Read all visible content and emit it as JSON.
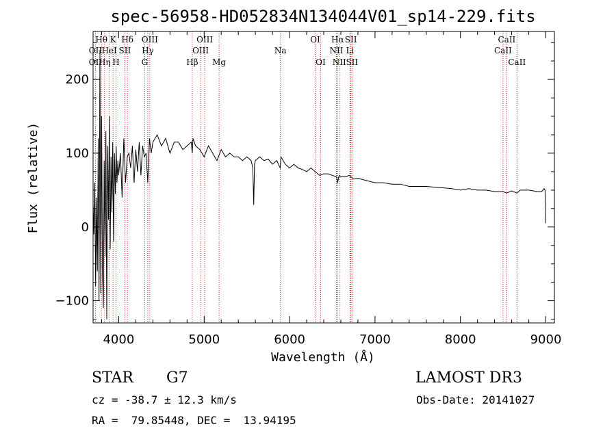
{
  "chart_data": {
    "type": "line",
    "title": "spec-56958-HD052834N134044V01_sp14-229.fits",
    "xlabel": "Wavelength (Å)",
    "ylabel": "Flux (relative)",
    "xlim": [
      3700,
      9100
    ],
    "ylim": [
      -130,
      265
    ],
    "xticks": [
      4000,
      5000,
      6000,
      7000,
      8000,
      9000
    ],
    "yticks": [
      -100,
      0,
      100,
      200
    ],
    "series": [
      {
        "name": "flux",
        "x": [
          3700,
          3710,
          3720,
          3730,
          3740,
          3750,
          3760,
          3770,
          3780,
          3790,
          3800,
          3810,
          3820,
          3830,
          3840,
          3850,
          3860,
          3870,
          3880,
          3890,
          3900,
          3910,
          3920,
          3930,
          3940,
          3950,
          3960,
          3970,
          3980,
          3990,
          4000,
          4020,
          4040,
          4060,
          4080,
          4100,
          4120,
          4140,
          4160,
          4180,
          4200,
          4220,
          4240,
          4260,
          4280,
          4300,
          4320,
          4340,
          4360,
          4380,
          4400,
          4450,
          4500,
          4550,
          4600,
          4650,
          4700,
          4750,
          4800,
          4850,
          4860,
          4870,
          4900,
          4950,
          5000,
          5050,
          5100,
          5150,
          5200,
          5250,
          5300,
          5350,
          5400,
          5450,
          5500,
          5550,
          5570,
          5580,
          5590,
          5600,
          5650,
          5700,
          5750,
          5800,
          5850,
          5890,
          5900,
          5950,
          6000,
          6050,
          6100,
          6150,
          6200,
          6250,
          6300,
          6350,
          6400,
          6450,
          6500,
          6550,
          6563,
          6580,
          6600,
          6650,
          6700,
          6750,
          6800,
          6900,
          7000,
          7100,
          7200,
          7300,
          7400,
          7500,
          7600,
          7700,
          7800,
          7900,
          8000,
          8100,
          8200,
          8300,
          8400,
          8500,
          8540,
          8600,
          8660,
          8700,
          8800,
          8900,
          8950,
          8980,
          8990,
          9000
        ],
        "values": [
          30,
          -10,
          60,
          -80,
          40,
          -60,
          120,
          -100,
          240,
          -90,
          150,
          -60,
          -110,
          90,
          -40,
          130,
          -125,
          110,
          10,
          150,
          -30,
          95,
          20,
          115,
          -20,
          100,
          45,
          110,
          60,
          90,
          70,
          100,
          40,
          120,
          60,
          95,
          100,
          80,
          110,
          60,
          105,
          75,
          115,
          70,
          110,
          95,
          100,
          60,
          120,
          100,
          115,
          125,
          110,
          120,
          100,
          115,
          115,
          105,
          110,
          115,
          100,
          120,
          110,
          105,
          95,
          110,
          100,
          90,
          105,
          95,
          100,
          95,
          95,
          90,
          95,
          90,
          80,
          30,
          85,
          90,
          95,
          90,
          92,
          85,
          90,
          80,
          95,
          85,
          80,
          85,
          80,
          78,
          75,
          80,
          75,
          70,
          72,
          72,
          70,
          68,
          60,
          70,
          68,
          68,
          70,
          65,
          66,
          63,
          60,
          60,
          58,
          58,
          55,
          55,
          55,
          54,
          53,
          52,
          50,
          52,
          50,
          50,
          48,
          48,
          46,
          49,
          46,
          50,
          50,
          48,
          48,
          52,
          50,
          5
        ]
      }
    ],
    "line_labels": [
      {
        "text": "Hθ",
        "x": 3798,
        "row": 1
      },
      {
        "text": "K",
        "x": 3934,
        "row": 1
      },
      {
        "text": "Hδ",
        "x": 4102,
        "row": 1
      },
      {
        "text": "OIII",
        "x": 4363,
        "row": 1
      },
      {
        "text": "OIII",
        "x": 5007,
        "row": 1
      },
      {
        "text": "OI",
        "x": 6300,
        "row": 1
      },
      {
        "text": "Hα",
        "x": 6563,
        "row": 1
      },
      {
        "text": "SII",
        "x": 6717,
        "row": 1
      },
      {
        "text": "CaII",
        "x": 8542,
        "row": 1
      },
      {
        "text": "OII",
        "x": 3727,
        "row": 2
      },
      {
        "text": "HeI",
        "x": 3889,
        "row": 2
      },
      {
        "text": "SII",
        "x": 4072,
        "row": 2
      },
      {
        "text": "Hγ",
        "x": 4340,
        "row": 2
      },
      {
        "text": "OIII",
        "x": 4959,
        "row": 2
      },
      {
        "text": "Na",
        "x": 5893,
        "row": 2
      },
      {
        "text": "NII",
        "x": 6548,
        "row": 2
      },
      {
        "text": "Li",
        "x": 6708,
        "row": 2
      },
      {
        "text": "CaII",
        "x": 8498,
        "row": 2
      },
      {
        "text": "OII",
        "x": 3727,
        "row": 3
      },
      {
        "text": "Hη",
        "x": 3835,
        "row": 3
      },
      {
        "text": "H",
        "x": 3968,
        "row": 3
      },
      {
        "text": "G",
        "x": 4304,
        "row": 3
      },
      {
        "text": "Hβ",
        "x": 4861,
        "row": 3
      },
      {
        "text": "Mg",
        "x": 5175,
        "row": 3
      },
      {
        "text": "OI",
        "x": 6363,
        "row": 3
      },
      {
        "text": "NII",
        "x": 6583,
        "row": 3
      },
      {
        "text": "SII",
        "x": 6731,
        "row": 3
      },
      {
        "text": "CaII",
        "x": 8662,
        "row": 3
      }
    ],
    "line_marks": [
      3727,
      3798,
      3835,
      3889,
      3934,
      3968,
      4072,
      4102,
      4304,
      4340,
      4363,
      4861,
      4959,
      5007,
      5175,
      5893,
      6300,
      6363,
      6548,
      6563,
      6583,
      6708,
      6717,
      6731,
      8498,
      8542,
      8662
    ],
    "colors": {
      "line": "#000000",
      "marker": "#cc2222"
    }
  },
  "info": {
    "object_class": "STAR",
    "subclass": "G7",
    "survey": "LAMOST DR3",
    "cz": "cz = -38.7 ± 12.3 km/s",
    "obs_date": "Obs-Date: 20141027",
    "coords": "RA =  79.85448, DEC =  13.94195"
  }
}
